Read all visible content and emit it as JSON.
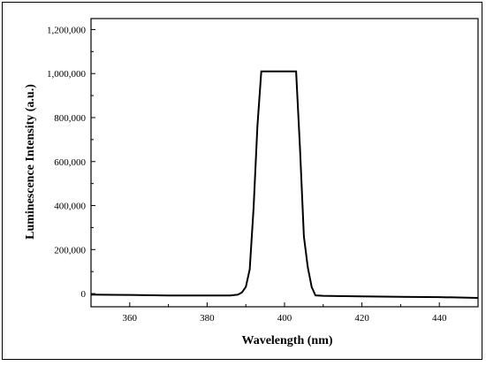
{
  "chart_data": {
    "type": "line",
    "title": "",
    "xlabel": "Wavelength (nm)",
    "ylabel": "Luminescence Intensity (a.u.)",
    "xlim": [
      350,
      450
    ],
    "ylim": [
      -60000,
      1250000
    ],
    "xticks": [
      360,
      380,
      400,
      420,
      440
    ],
    "xtick_labels": [
      "360",
      "380",
      "400",
      "420",
      "440"
    ],
    "yticks": [
      0,
      200000,
      400000,
      600000,
      800000,
      1000000,
      1200000
    ],
    "ytick_labels": [
      "0",
      "200,000",
      "400,000",
      "600,000",
      "800,000",
      "1,000,000",
      "1,200,000"
    ],
    "grid": false,
    "legend": "none",
    "line_color": "#000000",
    "series": [
      {
        "x": [
          350,
          360,
          370,
          380,
          386,
          388,
          389,
          390,
          391,
          392,
          393,
          394,
          396,
          398,
          400,
          402,
          403,
          404,
          405,
          406,
          407,
          408,
          410,
          420,
          430,
          440,
          445,
          450
        ],
        "y": [
          -5000,
          -6000,
          -9000,
          -9000,
          -9000,
          -5000,
          5000,
          30000,
          110000,
          390000,
          760000,
          1010000,
          1010000,
          1010000,
          1010000,
          1010000,
          1010000,
          660000,
          260000,
          120000,
          30000,
          -8000,
          -10000,
          -13000,
          -15000,
          -16000,
          -18000,
          -20000
        ]
      }
    ]
  }
}
